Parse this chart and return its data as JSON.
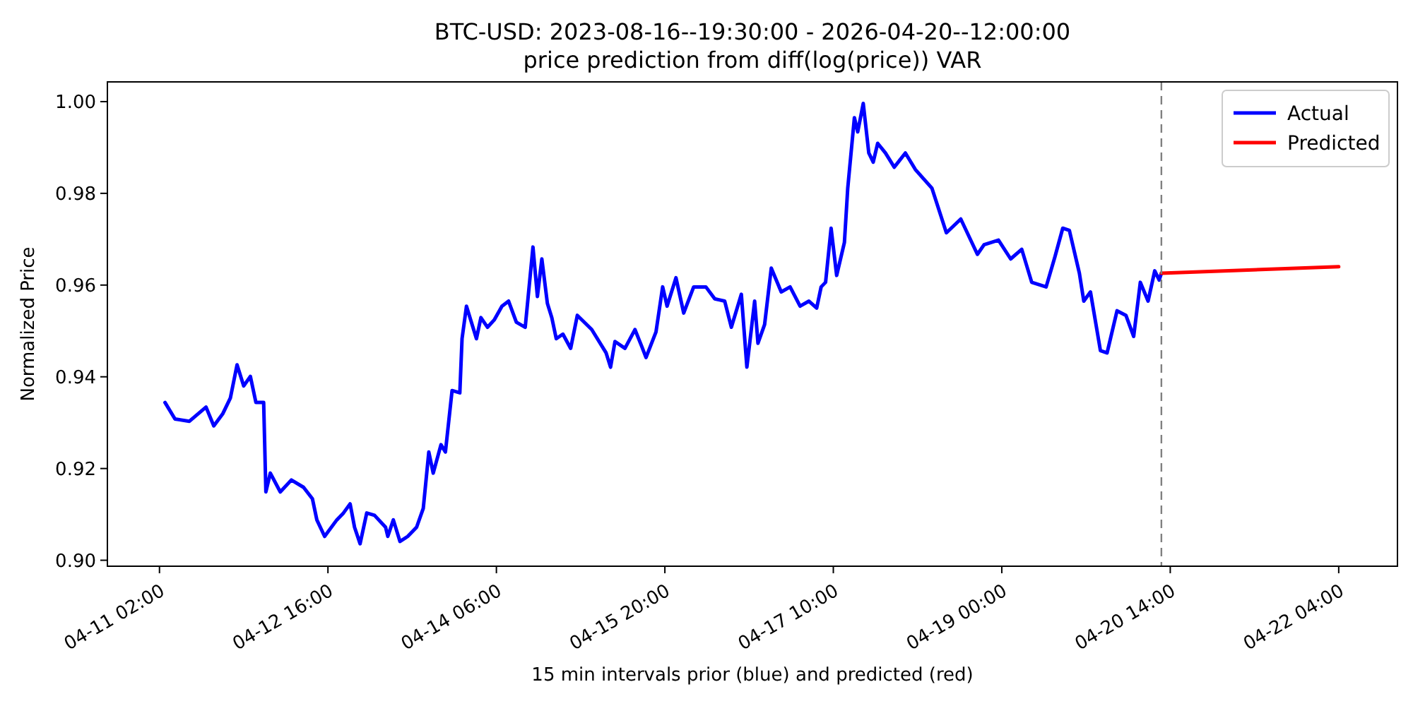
{
  "chart_data": {
    "type": "line",
    "title": "BTC-USD: 2023-08-16--19:30:00 - 2026-04-20--12:00:00",
    "subtitle": "price prediction from diff(log(price)) VAR",
    "xlabel": "15 min intervals prior (blue) and predicted (red)",
    "ylabel": "Normalized Price",
    "series": [
      {
        "name": "Actual",
        "color": "#0000ff",
        "x": [
          "2026-04-11T03:15",
          "2026-04-11T05:30",
          "2026-04-11T08:45",
          "2026-04-11T12:30",
          "2026-04-11T14:15",
          "2026-04-11T16:15",
          "2026-04-11T18:00",
          "2026-04-11T19:30",
          "2026-04-11T21:00",
          "2026-04-11T22:30",
          "2026-04-11T23:45",
          "2026-04-12T01:30",
          "2026-04-12T02:00",
          "2026-04-12T03:00",
          "2026-04-12T05:15",
          "2026-04-12T07:45",
          "2026-04-12T10:30",
          "2026-04-12T12:30",
          "2026-04-12T13:30",
          "2026-04-12T15:15",
          "2026-04-12T18:00",
          "2026-04-12T19:30",
          "2026-04-12T21:00",
          "2026-04-12T22:00",
          "2026-04-12T23:15",
          "2026-04-13T00:45",
          "2026-04-13T02:30",
          "2026-04-13T05:00",
          "2026-04-13T05:30",
          "2026-04-13T06:45",
          "2026-04-13T08:15",
          "2026-04-13T10:00",
          "2026-04-13T12:00",
          "2026-04-13T13:30",
          "2026-04-13T14:45",
          "2026-04-13T15:45",
          "2026-04-13T17:30",
          "2026-04-13T18:30",
          "2026-04-13T20:00",
          "2026-04-13T21:45",
          "2026-04-13T22:15",
          "2026-04-13T23:15",
          "2026-04-14T01:30",
          "2026-04-14T02:30",
          "2026-04-14T04:00",
          "2026-04-14T05:30",
          "2026-04-14T07:15",
          "2026-04-14T08:45",
          "2026-04-14T10:30",
          "2026-04-14T12:30",
          "2026-04-14T14:15",
          "2026-04-14T15:15",
          "2026-04-14T16:15",
          "2026-04-14T17:30",
          "2026-04-14T18:30",
          "2026-04-14T19:30",
          "2026-04-14T21:00",
          "2026-04-14T22:45",
          "2026-04-15T00:15",
          "2026-04-15T03:30",
          "2026-04-15T06:45",
          "2026-04-15T07:45",
          "2026-04-15T08:45",
          "2026-04-15T11:00",
          "2026-04-15T13:15",
          "2026-04-15T14:45",
          "2026-04-15T15:45",
          "2026-04-15T18:00",
          "2026-04-15T19:30",
          "2026-04-15T20:30",
          "2026-04-15T22:30",
          "2026-04-16T00:15",
          "2026-04-16T02:30",
          "2026-04-16T05:15",
          "2026-04-16T07:15",
          "2026-04-16T09:30",
          "2026-04-16T11:00",
          "2026-04-16T13:15",
          "2026-04-16T14:30",
          "2026-04-16T16:15",
          "2026-04-16T17:00",
          "2026-04-16T18:30",
          "2026-04-16T20:00",
          "2026-04-16T22:15",
          "2026-04-17T00:15",
          "2026-04-17T02:30",
          "2026-04-17T04:30",
          "2026-04-17T06:15",
          "2026-04-17T07:15",
          "2026-04-17T08:15",
          "2026-04-17T09:30",
          "2026-04-17T10:45",
          "2026-04-17T12:30",
          "2026-04-17T13:15",
          "2026-04-17T14:45",
          "2026-04-17T15:30",
          "2026-04-17T16:45",
          "2026-04-17T18:00",
          "2026-04-17T19:00",
          "2026-04-17T20:00",
          "2026-04-17T21:45",
          "2026-04-17T23:45",
          "2026-04-18T02:15",
          "2026-04-18T04:30",
          "2026-04-18T08:15",
          "2026-04-18T11:30",
          "2026-04-18T14:45",
          "2026-04-18T18:30",
          "2026-04-18T20:00",
          "2026-04-18T23:15",
          "2026-04-19T02:00",
          "2026-04-19T04:30",
          "2026-04-19T06:45",
          "2026-04-19T10:00",
          "2026-04-19T12:00",
          "2026-04-19T13:45",
          "2026-04-19T15:15",
          "2026-04-19T17:30",
          "2026-04-19T18:30",
          "2026-04-19T20:00",
          "2026-04-19T22:15",
          "2026-04-19T23:45",
          "2026-04-20T02:00",
          "2026-04-20T04:00",
          "2026-04-20T05:45",
          "2026-04-20T07:15",
          "2026-04-20T09:00",
          "2026-04-20T10:30",
          "2026-04-20T11:30",
          "2026-04-20T12:00"
        ],
        "values": [
          0.9344,
          0.9308,
          0.9303,
          0.9334,
          0.9293,
          0.9319,
          0.9354,
          0.9426,
          0.938,
          0.9401,
          0.9344,
          0.9344,
          0.9149,
          0.919,
          0.9149,
          0.9175,
          0.9159,
          0.9134,
          0.9088,
          0.9052,
          0.9088,
          0.9103,
          0.9123,
          0.9072,
          0.9036,
          0.9103,
          0.9098,
          0.9072,
          0.9052,
          0.9088,
          0.9041,
          0.9052,
          0.9072,
          0.9113,
          0.9236,
          0.919,
          0.9252,
          0.9236,
          0.937,
          0.9365,
          0.9483,
          0.9554,
          0.9483,
          0.9529,
          0.9508,
          0.9524,
          0.9554,
          0.9565,
          0.9519,
          0.9508,
          0.9683,
          0.9575,
          0.9657,
          0.956,
          0.9529,
          0.9483,
          0.9493,
          0.9462,
          0.9534,
          0.9503,
          0.9452,
          0.9421,
          0.9477,
          0.9462,
          0.9503,
          0.9467,
          0.9442,
          0.9498,
          0.9596,
          0.9554,
          0.9616,
          0.9539,
          0.9596,
          0.9596,
          0.957,
          0.9565,
          0.9508,
          0.958,
          0.9421,
          0.9565,
          0.9473,
          0.9514,
          0.9637,
          0.9585,
          0.9596,
          0.9554,
          0.9565,
          0.955,
          0.9596,
          0.9606,
          0.9724,
          0.9621,
          0.9693,
          0.9811,
          0.9965,
          0.9934,
          0.9996,
          0.9888,
          0.9868,
          0.9909,
          0.9888,
          0.9857,
          0.9888,
          0.9852,
          0.9811,
          0.9714,
          0.9744,
          0.9667,
          0.9688,
          0.9698,
          0.9657,
          0.9678,
          0.9606,
          0.9596,
          0.9662,
          0.9724,
          0.9719,
          0.9626,
          0.9565,
          0.9585,
          0.9457,
          0.9452,
          0.9544,
          0.9534,
          0.9488,
          0.9606,
          0.9565,
          0.9631,
          0.9611,
          0.9626
        ]
      },
      {
        "name": "Predicted",
        "color": "#ff0000",
        "x": [
          "2026-04-20T12:00",
          "2026-04-22T04:00"
        ],
        "values": [
          0.9626,
          0.964
        ]
      }
    ],
    "xlim": [
      "2026-04-10T14:15",
      "2026-04-22T17:15"
    ],
    "xticks": [
      {
        "value": "2026-04-11T02:00",
        "label": "04-11 02:00"
      },
      {
        "value": "2026-04-12T16:00",
        "label": "04-12 16:00"
      },
      {
        "value": "2026-04-14T06:00",
        "label": "04-14 06:00"
      },
      {
        "value": "2026-04-15T20:00",
        "label": "04-15 20:00"
      },
      {
        "value": "2026-04-17T10:00",
        "label": "04-17 10:00"
      },
      {
        "value": "2026-04-19T00:00",
        "label": "04-19 00:00"
      },
      {
        "value": "2026-04-20T14:00",
        "label": "04-20 14:00"
      },
      {
        "value": "2026-04-22T04:00",
        "label": "04-22 04:00"
      }
    ],
    "ylim": [
      0.8987,
      1.0043
    ],
    "yticks": [
      {
        "value": 0.9,
        "label": "0.90"
      },
      {
        "value": 0.92,
        "label": "0.92"
      },
      {
        "value": 0.94,
        "label": "0.94"
      },
      {
        "value": 0.96,
        "label": "0.96"
      },
      {
        "value": 0.98,
        "label": "0.98"
      },
      {
        "value": 1.0,
        "label": "1.00"
      }
    ],
    "ref_lines": [
      {
        "axis": "x",
        "value": "2026-04-20T12:00",
        "color": "#808080",
        "line_style": "dashed"
      }
    ],
    "legend": "top right",
    "grid": false,
    "line_style": "solid",
    "marker": "none"
  }
}
